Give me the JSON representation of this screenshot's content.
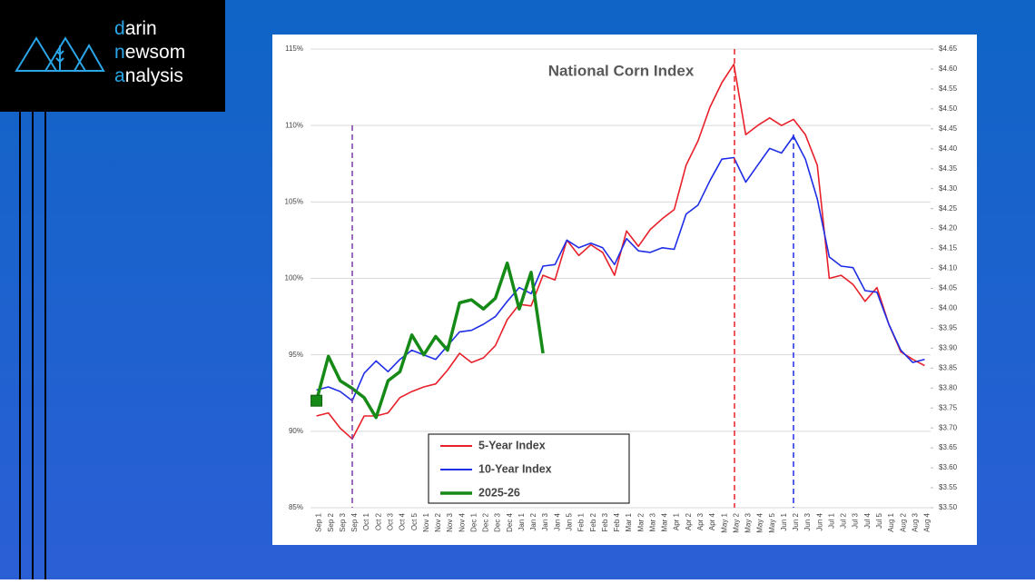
{
  "logo": {
    "lines": [
      "darin",
      "newsom",
      "analysis"
    ]
  },
  "chart_data": {
    "type": "line",
    "title": "National Corn Index",
    "categories": [
      "Sep 1",
      "Sep 2",
      "Sep 3",
      "Sep 4",
      "Oct 1",
      "Oct 2",
      "Oct 3",
      "Oct 4",
      "Oct 5",
      "Nov 1",
      "Nov 2",
      "Nov 3",
      "Nov 4",
      "Dec 1",
      "Dec 2",
      "Dec 3",
      "Dec 4",
      "Jan 1",
      "Jan 2",
      "Jan 3",
      "Jan 4",
      "Jan 5",
      "Feb 1",
      "Feb 2",
      "Feb 3",
      "Feb 4",
      "Mar 1",
      "Mar 2",
      "Mar 3",
      "Mar 4",
      "Apr 1",
      "Apr 2",
      "Apr 3",
      "Apr 4",
      "May 1",
      "May 2",
      "May 3",
      "May 4",
      "May 5",
      "Jun 1",
      "Jun 2",
      "Jun 3",
      "Jun 4",
      "Jul 1",
      "Jul 2",
      "Jul 3",
      "Jul 4",
      "Jul 5",
      "Aug 1",
      "Aug 2",
      "Aug 3",
      "Aug 4"
    ],
    "series": [
      {
        "name": "5-Year Index",
        "color": "#e8202a",
        "values": [
          91.0,
          91.2,
          90.2,
          89.5,
          91.0,
          91.0,
          91.2,
          92.2,
          92.6,
          92.9,
          93.1,
          94.0,
          95.1,
          94.5,
          94.8,
          95.6,
          97.3,
          98.3,
          98.2,
          100.2,
          99.9,
          102.5,
          101.5,
          102.2,
          101.7,
          100.2,
          103.1,
          102.1,
          103.2,
          103.9,
          104.5,
          107.4,
          109.0,
          111.2,
          112.8,
          114.0,
          109.4,
          110.0,
          110.5,
          110.0,
          110.4,
          109.4,
          107.4,
          100.0,
          100.2,
          99.6,
          98.5,
          99.4,
          97.0,
          95.2,
          94.7,
          94.3
        ]
      },
      {
        "name": "10-Year Index",
        "color": "#1f2ee6",
        "values": [
          92.7,
          92.9,
          92.6,
          92.0,
          93.8,
          94.6,
          93.9,
          94.7,
          95.3,
          95.0,
          94.7,
          95.6,
          96.5,
          96.6,
          97.0,
          97.5,
          98.5,
          99.4,
          99.0,
          100.8,
          100.9,
          102.5,
          102.0,
          102.3,
          102.0,
          100.9,
          102.6,
          101.8,
          101.7,
          102.0,
          101.9,
          104.2,
          104.8,
          106.4,
          107.8,
          107.9,
          106.3,
          107.4,
          108.5,
          108.2,
          109.3,
          107.8,
          105.2,
          101.4,
          100.8,
          100.7,
          99.2,
          99.1,
          97.0,
          95.3,
          94.5,
          94.7
        ]
      },
      {
        "name": "2025-26",
        "color": "#168a16",
        "values": [
          92.0,
          94.9,
          93.3,
          92.8,
          92.2,
          90.9,
          93.3,
          93.9,
          96.3,
          95.0,
          96.2,
          95.3,
          98.4,
          98.6,
          98.0,
          98.7,
          101.0,
          98.0,
          100.4,
          95.1,
          null,
          null,
          null,
          null,
          null,
          null,
          null,
          null,
          null,
          null,
          null,
          null,
          null,
          null,
          null,
          null,
          null,
          null,
          null,
          null,
          null,
          null,
          null,
          null,
          null,
          null,
          null,
          null,
          null,
          null,
          null,
          null
        ]
      }
    ],
    "ylim": [
      85,
      115
    ],
    "yticks": [
      {
        "value": 85,
        "label": "85%"
      },
      {
        "value": 90,
        "label": "90%"
      },
      {
        "value": 95,
        "label": "95%"
      },
      {
        "value": 100,
        "label": "100%"
      },
      {
        "value": 105,
        "label": "105%"
      },
      {
        "value": 110,
        "label": "110%"
      },
      {
        "value": 115,
        "label": "115%"
      }
    ],
    "y2lim": [
      3.5,
      4.65
    ],
    "y2ticks": [
      {
        "value": 3.5,
        "label": "$3.50"
      },
      {
        "value": 3.55,
        "label": "$3.55"
      },
      {
        "value": 3.6,
        "label": "$3.60"
      },
      {
        "value": 3.65,
        "label": "$3.65"
      },
      {
        "value": 3.7,
        "label": "$3.70"
      },
      {
        "value": 3.75,
        "label": "$3.75"
      },
      {
        "value": 3.8,
        "label": "$3.80"
      },
      {
        "value": 3.85,
        "label": "$3.85"
      },
      {
        "value": 3.9,
        "label": "$3.90"
      },
      {
        "value": 3.95,
        "label": "$3.95"
      },
      {
        "value": 4.0,
        "label": "$4.00"
      },
      {
        "value": 4.05,
        "label": "$4.05"
      },
      {
        "value": 4.1,
        "label": "$4.10"
      },
      {
        "value": 4.15,
        "label": "$4.15"
      },
      {
        "value": 4.2,
        "label": "$4.20"
      },
      {
        "value": 4.25,
        "label": "$4.25"
      },
      {
        "value": 4.3,
        "label": "$4.30"
      },
      {
        "value": 4.35,
        "label": "$4.35"
      },
      {
        "value": 4.4,
        "label": "$4.40"
      },
      {
        "value": 4.45,
        "label": "$4.45"
      },
      {
        "value": 4.5,
        "label": "$4.50"
      },
      {
        "value": 4.55,
        "label": "$4.55"
      },
      {
        "value": 4.6,
        "label": "$4.60"
      },
      {
        "value": 4.65,
        "label": "$4.65"
      }
    ],
    "grid": true
  }
}
